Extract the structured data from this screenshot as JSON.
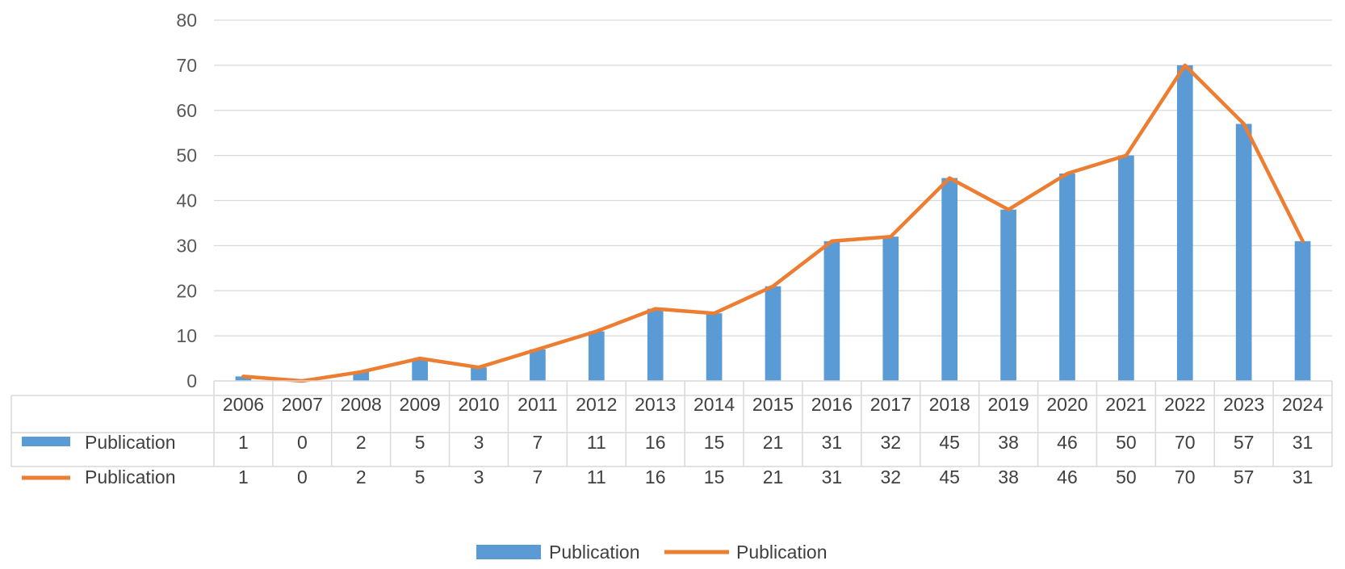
{
  "chart_data": {
    "type": "bar",
    "categories": [
      "2006",
      "2007",
      "2008",
      "2009",
      "2010",
      "2011",
      "2012",
      "2013",
      "2014",
      "2015",
      "2016",
      "2017",
      "2018",
      "2019",
      "2020",
      "2021",
      "2022",
      "2023",
      "2024"
    ],
    "series": [
      {
        "name": "Publication",
        "type": "bar",
        "color": "#5b9bd5",
        "values": [
          1,
          0,
          2,
          5,
          3,
          7,
          11,
          16,
          15,
          21,
          31,
          32,
          45,
          38,
          46,
          50,
          70,
          57,
          31
        ]
      },
      {
        "name": "Publication",
        "type": "line",
        "color": "#ed7d31",
        "values": [
          1,
          0,
          2,
          5,
          3,
          7,
          11,
          16,
          15,
          21,
          31,
          32,
          45,
          38,
          46,
          50,
          70,
          57,
          31
        ]
      }
    ],
    "ylim": [
      0,
      80
    ],
    "yticks": [
      0,
      10,
      20,
      30,
      40,
      50,
      60,
      70,
      80
    ],
    "grid": true,
    "data_table": true,
    "legend": "bottom",
    "gridline_color": "#d9d9d9"
  }
}
